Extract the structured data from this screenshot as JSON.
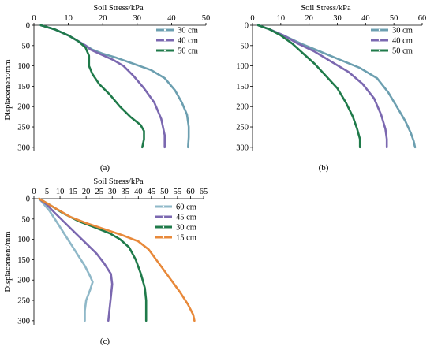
{
  "chart_data": [
    {
      "panel_label": "(a)",
      "type": "line",
      "xlabel": "Soil Stress/kPa",
      "ylabel": "Displacement/mm",
      "xlim": [
        0,
        50
      ],
      "ylim": [
        0,
        310
      ],
      "xticks": [
        0,
        10,
        20,
        30,
        40,
        50
      ],
      "yticks": [
        0,
        50,
        100,
        150,
        200,
        250,
        300
      ],
      "y_inverted": true,
      "x_axis_position": "top",
      "grid": false,
      "legend_position": "top-right",
      "series": [
        {
          "name": "30 cm",
          "color": "#6c9fb0",
          "x": [
            2,
            6,
            10,
            13,
            15,
            17,
            20,
            24,
            29,
            34,
            38,
            41,
            43,
            44.5,
            45,
            45,
            44.8
          ],
          "y": [
            0,
            10,
            25,
            40,
            50,
            60,
            70,
            80,
            95,
            110,
            130,
            160,
            190,
            220,
            250,
            275,
            300
          ]
        },
        {
          "name": "40 cm",
          "color": "#7b68b0",
          "x": [
            2,
            6,
            10,
            13,
            15,
            16.5,
            19,
            23,
            26,
            29,
            32,
            35,
            37,
            38,
            38
          ],
          "y": [
            0,
            10,
            25,
            40,
            50,
            60,
            70,
            85,
            100,
            125,
            155,
            190,
            230,
            270,
            300
          ]
        },
        {
          "name": "50 cm",
          "color": "#1f7a4a",
          "x": [
            2,
            6,
            10,
            13,
            15,
            16,
            16,
            17,
            19,
            22,
            25,
            28,
            31,
            32,
            32,
            31.5
          ],
          "y": [
            0,
            10,
            25,
            40,
            55,
            75,
            100,
            120,
            145,
            170,
            200,
            225,
            245,
            260,
            280,
            300
          ]
        }
      ]
    },
    {
      "panel_label": "(b)",
      "type": "line",
      "xlabel": "Soil Stress/kPa",
      "ylabel": "",
      "xlim": [
        0,
        60
      ],
      "ylim": [
        0,
        310
      ],
      "xticks": [
        0,
        10,
        20,
        30,
        40,
        50,
        60
      ],
      "yticks": [
        0,
        50,
        100,
        150,
        200,
        250,
        300
      ],
      "y_inverted": true,
      "x_axis_position": "top",
      "grid": false,
      "legend_position": "top-right",
      "series": [
        {
          "name": "30 cm",
          "color": "#6c9fb0",
          "x": [
            2,
            6,
            11,
            17,
            24,
            31,
            38,
            44,
            48,
            51,
            54,
            56,
            57,
            57.5
          ],
          "y": [
            0,
            10,
            25,
            45,
            65,
            85,
            105,
            130,
            165,
            200,
            235,
            265,
            285,
            300
          ]
        },
        {
          "name": "40 cm",
          "color": "#7b68b0",
          "x": [
            2,
            6,
            11,
            16,
            22,
            28,
            34,
            39,
            43,
            45.5,
            47,
            47.5,
            47.5
          ],
          "y": [
            0,
            10,
            25,
            45,
            65,
            90,
            115,
            145,
            180,
            220,
            255,
            280,
            300
          ]
        },
        {
          "name": "50 cm",
          "color": "#1f7a4a",
          "x": [
            2,
            6,
            10,
            14,
            18,
            22,
            26,
            30,
            33,
            35.5,
            37,
            38,
            38
          ],
          "y": [
            0,
            10,
            25,
            45,
            70,
            95,
            125,
            155,
            190,
            225,
            255,
            280,
            300
          ]
        }
      ]
    },
    {
      "panel_label": "(c)",
      "type": "line",
      "xlabel": "Soil Stress/kPa",
      "ylabel": "Displacement/mm",
      "xlim": [
        0,
        65
      ],
      "ylim": [
        0,
        310
      ],
      "xticks": [
        0,
        5,
        10,
        15,
        20,
        25,
        30,
        35,
        40,
        45,
        50,
        55,
        60,
        65
      ],
      "yticks": [
        0,
        50,
        100,
        150,
        200,
        250,
        300
      ],
      "y_inverted": true,
      "x_axis_position": "top",
      "grid": false,
      "legend_position": "top-right",
      "series": [
        {
          "name": "60 cm",
          "color": "#8fb8c8",
          "x": [
            2,
            4,
            6,
            8,
            10,
            12,
            14.5,
            17,
            19.5,
            21.5,
            22.5,
            21.5,
            20,
            19.5,
            19.5
          ],
          "y": [
            0,
            15,
            30,
            50,
            70,
            90,
            115,
            140,
            165,
            190,
            205,
            225,
            250,
            275,
            300
          ]
        },
        {
          "name": "45 cm",
          "color": "#7b68b0",
          "x": [
            2,
            5,
            8,
            12,
            16,
            20,
            24,
            27,
            29.5,
            30,
            29.5,
            29,
            28.5
          ],
          "y": [
            0,
            15,
            35,
            60,
            85,
            110,
            135,
            160,
            185,
            210,
            240,
            270,
            300
          ]
        },
        {
          "name": "30 cm",
          "color": "#1f7a4a",
          "x": [
            2,
            6,
            11,
            17,
            23,
            29,
            33,
            36.5,
            39,
            41,
            42.5,
            43,
            43,
            43
          ],
          "y": [
            0,
            15,
            35,
            55,
            70,
            85,
            100,
            120,
            150,
            185,
            220,
            250,
            275,
            300
          ]
        },
        {
          "name": "15 cm",
          "color": "#e8893a",
          "x": [
            2,
            6,
            10,
            14,
            20,
            27,
            34,
            40,
            44,
            48,
            52,
            56,
            59,
            61,
            61.5
          ],
          "y": [
            0,
            15,
            30,
            45,
            60,
            75,
            90,
            105,
            125,
            160,
            195,
            230,
            260,
            285,
            300
          ]
        }
      ]
    }
  ]
}
